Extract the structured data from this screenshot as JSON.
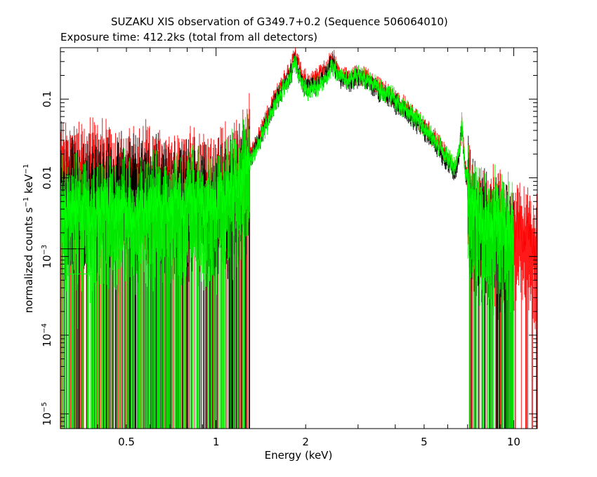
{
  "chart_data": {
    "type": "scatter",
    "title": "SUZAKU XIS observation of G349.7+0.2 (Sequence 506064010)",
    "subtitle": "Exposure time: 412.2ks (total from all detectors)",
    "xlabel": "Energy (keV)",
    "ylabel_main": "normalized counts s",
    "ylabel_sup1": "−1",
    "ylabel_mid": " keV",
    "ylabel_sup2": "−1",
    "x_scale": "log",
    "y_scale": "log",
    "xlim": [
      0.3,
      12
    ],
    "ylim": [
      6.5e-06,
      0.45
    ],
    "grid": false,
    "x_ticks": [
      {
        "value": 0.5,
        "label": "0.5"
      },
      {
        "value": 1,
        "label": "1"
      },
      {
        "value": 2,
        "label": "2"
      },
      {
        "value": 5,
        "label": "5"
      },
      {
        "value": 10,
        "label": "10"
      }
    ],
    "y_ticks": [
      {
        "value": 0.1,
        "base": "0.1",
        "exp": ""
      },
      {
        "value": 0.01,
        "base": "0.01",
        "exp": ""
      },
      {
        "value": 0.001,
        "base": "10",
        "exp": "−3"
      },
      {
        "value": 0.0001,
        "base": "10",
        "exp": "−4"
      },
      {
        "value": 1e-05,
        "base": "10",
        "exp": "−5"
      }
    ],
    "series": [
      {
        "color": "#ff0000",
        "spectrum": {
          "x": [
            0.3,
            0.5,
            1.0,
            1.2,
            1.4,
            1.6,
            1.75,
            1.85,
            1.95,
            2.05,
            2.2,
            2.35,
            2.45,
            2.6,
            2.8,
            3.0,
            3.2,
            3.5,
            4.0,
            4.5,
            5.0,
            5.5,
            6.0,
            6.3,
            6.55,
            6.7,
            6.85,
            7.2,
            8.0,
            9.0,
            10.0,
            11.0,
            12.0
          ],
          "y": [
            0.012,
            0.01,
            0.008,
            0.012,
            0.035,
            0.12,
            0.22,
            0.38,
            0.18,
            0.17,
            0.19,
            0.25,
            0.36,
            0.2,
            0.18,
            0.21,
            0.19,
            0.15,
            0.1,
            0.07,
            0.045,
            0.03,
            0.018,
            0.012,
            0.02,
            0.045,
            0.015,
            0.004,
            0.003,
            0.0025,
            0.002,
            0.0018,
            0.0015
          ]
        }
      },
      {
        "color": "#000000",
        "spectrum": {
          "x": [
            0.3,
            0.5,
            1.0,
            1.2,
            1.4,
            1.6,
            1.75,
            1.85,
            1.95,
            2.05,
            2.2,
            2.35,
            2.45,
            2.6,
            2.8,
            3.0,
            3.2,
            3.5,
            4.0,
            4.5,
            5.0,
            5.5,
            6.0,
            6.3,
            6.55,
            6.7,
            6.85,
            7.2,
            8.0,
            9.0,
            10.0
          ],
          "y": [
            0.007,
            0.007,
            0.006,
            0.01,
            0.03,
            0.1,
            0.18,
            0.3,
            0.15,
            0.14,
            0.16,
            0.2,
            0.3,
            0.18,
            0.16,
            0.19,
            0.17,
            0.13,
            0.09,
            0.06,
            0.04,
            0.026,
            0.016,
            0.011,
            0.018,
            0.05,
            0.013,
            0.004,
            0.0025,
            0.002,
            0.0015
          ]
        }
      },
      {
        "color": "#00ff00",
        "spectrum": {
          "x": [
            0.3,
            0.5,
            1.0,
            1.2,
            1.4,
            1.6,
            1.75,
            1.85,
            1.95,
            2.05,
            2.2,
            2.35,
            2.45,
            2.6,
            2.8,
            3.0,
            3.2,
            3.5,
            4.0,
            4.5,
            5.0,
            5.5,
            6.0,
            6.3,
            6.55,
            6.7,
            6.85,
            7.2,
            8.0,
            9.0,
            10.0
          ],
          "y": [
            0.004,
            0.004,
            0.005,
            0.009,
            0.028,
            0.1,
            0.17,
            0.28,
            0.14,
            0.13,
            0.15,
            0.19,
            0.28,
            0.19,
            0.17,
            0.2,
            0.18,
            0.14,
            0.1,
            0.065,
            0.045,
            0.028,
            0.018,
            0.013,
            0.02,
            0.055,
            0.014,
            0.005,
            0.003,
            0.0025,
            0.002
          ]
        }
      }
    ],
    "representative_errors": [
      {
        "color": "#000000",
        "x": 0.3,
        "y": 0.00125,
        "x_err": [
          0.3,
          0.36
        ],
        "y_err": [
          0.0008,
          0.002
        ]
      },
      {
        "color": "#00ff00",
        "x": 0.3,
        "y": 0.0006,
        "x_err": [
          0.3,
          0.39
        ],
        "y_err": [
          0.00012,
          0.0014
        ]
      }
    ]
  }
}
